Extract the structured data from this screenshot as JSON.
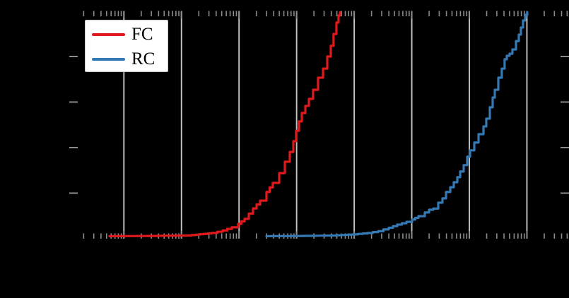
{
  "figure": {
    "background_color": "#000000",
    "plot_area_background": "#000000",
    "gridline_color": "#c4c4c4",
    "tick_color": "#8c8c8c"
  },
  "legend": {
    "position": "upper-left",
    "background": "#ffffff",
    "border_color": "#cccccc",
    "items": [
      {
        "label": "FC",
        "color": "#e01a1c"
      },
      {
        "label": "RC",
        "color": "#3478b4"
      }
    ]
  },
  "chart_data": {
    "type": "line",
    "subtype": "empirical-cdf",
    "title": "",
    "grid": {
      "vertical_major": true,
      "horizontal": false,
      "color": "#c4c4c4"
    },
    "x_axis": {
      "scale": "log",
      "tick_labels_visible": false,
      "range_decades": [
        0.051,
        8.731
      ],
      "major_gridline_decades": [
        1,
        2,
        3,
        4,
        5,
        6,
        7,
        8
      ],
      "minor_tick_mantissas": [
        2,
        3,
        4,
        5,
        6,
        7,
        8,
        9
      ],
      "ticks_on_top_and_bottom": true
    },
    "y_axis": {
      "scale": "linear",
      "tick_labels_visible": false,
      "range": [
        0,
        1
      ],
      "major_ticks_visible": [
        0.2,
        0.4,
        0.6,
        0.8
      ],
      "ticks_on_left_and_right": true
    },
    "series": [
      {
        "name": "FC",
        "color": "#e01a1c",
        "line_width": 3.2,
        "points": [
          [
            0.751,
            0.011
          ],
          [
            1.426,
            0.012
          ],
          [
            2.101,
            0.014
          ],
          [
            2.531,
            0.025
          ],
          [
            2.715,
            0.036
          ],
          [
            2.875,
            0.05
          ],
          [
            2.985,
            0.065
          ],
          [
            3.096,
            0.087
          ],
          [
            3.243,
            0.133
          ],
          [
            3.366,
            0.167
          ],
          [
            3.476,
            0.205
          ],
          [
            3.587,
            0.245
          ],
          [
            3.697,
            0.288
          ],
          [
            3.796,
            0.338
          ],
          [
            3.882,
            0.381
          ],
          [
            3.943,
            0.428
          ],
          [
            3.992,
            0.474
          ],
          [
            4.041,
            0.515
          ],
          [
            4.09,
            0.552
          ],
          [
            4.151,
            0.583
          ],
          [
            4.213,
            0.614
          ],
          [
            4.286,
            0.654
          ],
          [
            4.372,
            0.707
          ],
          [
            4.458,
            0.747
          ],
          [
            4.532,
            0.8
          ],
          [
            4.593,
            0.847
          ],
          [
            4.642,
            0.899
          ],
          [
            4.691,
            0.949
          ],
          [
            4.728,
            0.98
          ],
          [
            4.753,
            0.994
          ]
        ]
      },
      {
        "name": "RC",
        "color": "#3478b4",
        "line_width": 3.2,
        "points": [
          [
            3.476,
            0.011
          ],
          [
            4.065,
            0.012
          ],
          [
            4.618,
            0.014
          ],
          [
            4.986,
            0.019
          ],
          [
            5.232,
            0.025
          ],
          [
            5.416,
            0.033
          ],
          [
            5.6,
            0.048
          ],
          [
            5.748,
            0.062
          ],
          [
            5.907,
            0.074
          ],
          [
            6.005,
            0.084
          ],
          [
            6.116,
            0.099
          ],
          [
            6.226,
            0.115
          ],
          [
            6.3,
            0.127
          ],
          [
            6.374,
            0.132
          ],
          [
            6.46,
            0.158
          ],
          [
            6.533,
            0.177
          ],
          [
            6.595,
            0.205
          ],
          [
            6.668,
            0.226
          ],
          [
            6.73,
            0.248
          ],
          [
            6.791,
            0.27
          ],
          [
            6.84,
            0.295
          ],
          [
            6.902,
            0.323
          ],
          [
            6.963,
            0.36
          ],
          [
            7.012,
            0.388
          ],
          [
            7.086,
            0.422
          ],
          [
            7.159,
            0.459
          ],
          [
            7.245,
            0.493
          ],
          [
            7.294,
            0.527
          ],
          [
            7.356,
            0.577
          ],
          [
            7.405,
            0.62
          ],
          [
            7.442,
            0.654
          ],
          [
            7.503,
            0.707
          ],
          [
            7.564,
            0.747
          ],
          [
            7.613,
            0.788
          ],
          [
            7.65,
            0.803
          ],
          [
            7.699,
            0.812
          ],
          [
            7.748,
            0.831
          ],
          [
            7.81,
            0.868
          ],
          [
            7.859,
            0.896
          ],
          [
            7.895,
            0.927
          ],
          [
            7.932,
            0.958
          ],
          [
            7.969,
            0.983
          ],
          [
            8.006,
            0.994
          ]
        ]
      }
    ]
  }
}
